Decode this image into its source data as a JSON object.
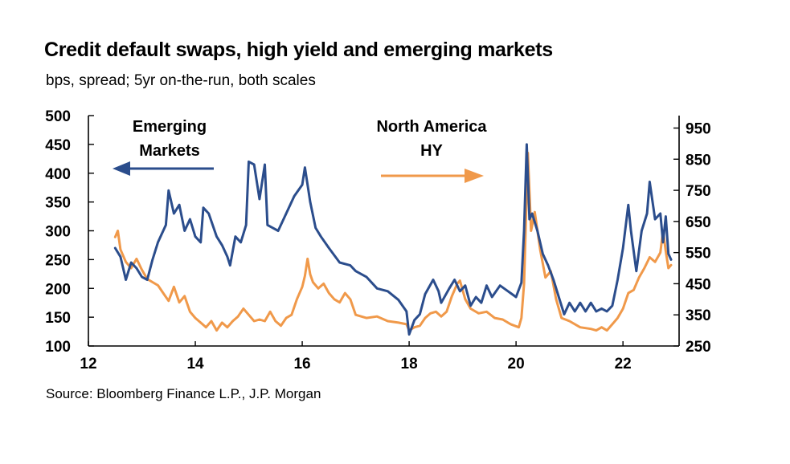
{
  "chart_data": {
    "type": "line",
    "title": "Credit default swaps, high yield and emerging markets",
    "subtitle": "bps, spread; 5yr on-the-run, both scales",
    "source": "Source: Bloomberg Finance L.P., J.P. Morgan",
    "xlim": [
      12,
      23.05
    ],
    "ylim_left": [
      100,
      500
    ],
    "ylim_right": [
      250,
      990
    ],
    "x_ticks": [
      "12",
      "14",
      "16",
      "18",
      "20",
      "22"
    ],
    "y_ticks_left": [
      "500",
      "450",
      "400",
      "350",
      "300",
      "250",
      "200",
      "150",
      "100"
    ],
    "y_ticks_right": [
      "950",
      "850",
      "750",
      "650",
      "550",
      "450",
      "350",
      "250"
    ],
    "annotations": {
      "em_line1": "Emerging",
      "em_line2": "Markets",
      "hy_line1": "North America",
      "hy_line2": "HY"
    },
    "series": [
      {
        "name": "Emerging Markets",
        "axis": "left",
        "color": "#2B4D8C",
        "points": [
          [
            12.5,
            270
          ],
          [
            12.6,
            255
          ],
          [
            12.7,
            215
          ],
          [
            12.8,
            245
          ],
          [
            12.9,
            235
          ],
          [
            13.0,
            220
          ],
          [
            13.1,
            215
          ],
          [
            13.2,
            250
          ],
          [
            13.3,
            280
          ],
          [
            13.45,
            310
          ],
          [
            13.5,
            370
          ],
          [
            13.6,
            330
          ],
          [
            13.7,
            345
          ],
          [
            13.8,
            300
          ],
          [
            13.9,
            320
          ],
          [
            14.0,
            290
          ],
          [
            14.1,
            280
          ],
          [
            14.15,
            340
          ],
          [
            14.25,
            330
          ],
          [
            14.4,
            290
          ],
          [
            14.5,
            275
          ],
          [
            14.6,
            255
          ],
          [
            14.65,
            240
          ],
          [
            14.75,
            290
          ],
          [
            14.85,
            280
          ],
          [
            14.95,
            310
          ],
          [
            15.0,
            420
          ],
          [
            15.1,
            415
          ],
          [
            15.2,
            355
          ],
          [
            15.3,
            415
          ],
          [
            15.35,
            310
          ],
          [
            15.45,
            305
          ],
          [
            15.55,
            300
          ],
          [
            15.7,
            330
          ],
          [
            15.85,
            360
          ],
          [
            16.0,
            380
          ],
          [
            16.05,
            410
          ],
          [
            16.15,
            350
          ],
          [
            16.25,
            305
          ],
          [
            16.35,
            290
          ],
          [
            16.5,
            270
          ],
          [
            16.7,
            245
          ],
          [
            16.9,
            240
          ],
          [
            17.0,
            230
          ],
          [
            17.2,
            220
          ],
          [
            17.4,
            200
          ],
          [
            17.6,
            195
          ],
          [
            17.8,
            180
          ],
          [
            17.95,
            160
          ],
          [
            18.0,
            120
          ],
          [
            18.1,
            145
          ],
          [
            18.2,
            155
          ],
          [
            18.3,
            190
          ],
          [
            18.45,
            215
          ],
          [
            18.55,
            195
          ],
          [
            18.6,
            175
          ],
          [
            18.75,
            200
          ],
          [
            18.85,
            215
          ],
          [
            18.95,
            195
          ],
          [
            19.05,
            205
          ],
          [
            19.15,
            170
          ],
          [
            19.25,
            185
          ],
          [
            19.35,
            175
          ],
          [
            19.45,
            205
          ],
          [
            19.55,
            185
          ],
          [
            19.7,
            205
          ],
          [
            19.85,
            195
          ],
          [
            20.0,
            185
          ],
          [
            20.1,
            210
          ],
          [
            20.15,
            300
          ],
          [
            20.2,
            450
          ],
          [
            20.25,
            320
          ],
          [
            20.3,
            330
          ],
          [
            20.4,
            300
          ],
          [
            20.5,
            260
          ],
          [
            20.6,
            240
          ],
          [
            20.7,
            215
          ],
          [
            20.8,
            185
          ],
          [
            20.9,
            155
          ],
          [
            21.0,
            175
          ],
          [
            21.1,
            160
          ],
          [
            21.2,
            175
          ],
          [
            21.3,
            160
          ],
          [
            21.4,
            175
          ],
          [
            21.5,
            160
          ],
          [
            21.6,
            165
          ],
          [
            21.7,
            160
          ],
          [
            21.8,
            170
          ],
          [
            21.9,
            215
          ],
          [
            22.0,
            270
          ],
          [
            22.1,
            345
          ],
          [
            22.15,
            300
          ],
          [
            22.25,
            230
          ],
          [
            22.35,
            300
          ],
          [
            22.45,
            330
          ],
          [
            22.5,
            385
          ],
          [
            22.6,
            320
          ],
          [
            22.7,
            330
          ],
          [
            22.75,
            280
          ],
          [
            22.8,
            325
          ],
          [
            22.85,
            260
          ],
          [
            22.9,
            250
          ]
        ]
      },
      {
        "name": "North America HY",
        "axis": "right",
        "color": "#F0994A",
        "points": [
          [
            12.5,
            600
          ],
          [
            12.55,
            620
          ],
          [
            12.6,
            560
          ],
          [
            12.7,
            520
          ],
          [
            12.8,
            500
          ],
          [
            12.9,
            530
          ],
          [
            13.0,
            495
          ],
          [
            13.1,
            465
          ],
          [
            13.2,
            455
          ],
          [
            13.3,
            445
          ],
          [
            13.4,
            420
          ],
          [
            13.5,
            395
          ],
          [
            13.6,
            440
          ],
          [
            13.7,
            390
          ],
          [
            13.8,
            410
          ],
          [
            13.9,
            360
          ],
          [
            14.0,
            340
          ],
          [
            14.1,
            325
          ],
          [
            14.2,
            310
          ],
          [
            14.3,
            330
          ],
          [
            14.4,
            300
          ],
          [
            14.5,
            325
          ],
          [
            14.6,
            310
          ],
          [
            14.7,
            330
          ],
          [
            14.8,
            345
          ],
          [
            14.9,
            370
          ],
          [
            15.0,
            350
          ],
          [
            15.1,
            330
          ],
          [
            15.2,
            335
          ],
          [
            15.3,
            330
          ],
          [
            15.4,
            360
          ],
          [
            15.5,
            330
          ],
          [
            15.6,
            315
          ],
          [
            15.7,
            340
          ],
          [
            15.8,
            350
          ],
          [
            15.9,
            400
          ],
          [
            16.0,
            440
          ],
          [
            16.05,
            475
          ],
          [
            16.1,
            530
          ],
          [
            16.15,
            480
          ],
          [
            16.2,
            455
          ],
          [
            16.3,
            435
          ],
          [
            16.4,
            450
          ],
          [
            16.5,
            420
          ],
          [
            16.6,
            400
          ],
          [
            16.7,
            390
          ],
          [
            16.8,
            420
          ],
          [
            16.9,
            400
          ],
          [
            17.0,
            350
          ],
          [
            17.2,
            340
          ],
          [
            17.4,
            345
          ],
          [
            17.6,
            330
          ],
          [
            17.8,
            325
          ],
          [
            17.95,
            320
          ],
          [
            18.0,
            300
          ],
          [
            18.1,
            310
          ],
          [
            18.2,
            315
          ],
          [
            18.3,
            340
          ],
          [
            18.4,
            355
          ],
          [
            18.5,
            360
          ],
          [
            18.6,
            345
          ],
          [
            18.7,
            360
          ],
          [
            18.8,
            410
          ],
          [
            18.9,
            450
          ],
          [
            18.95,
            460
          ],
          [
            19.05,
            400
          ],
          [
            19.15,
            370
          ],
          [
            19.3,
            355
          ],
          [
            19.45,
            360
          ],
          [
            19.6,
            340
          ],
          [
            19.75,
            335
          ],
          [
            19.9,
            320
          ],
          [
            20.05,
            310
          ],
          [
            20.1,
            340
          ],
          [
            20.15,
            450
          ],
          [
            20.22,
            870
          ],
          [
            20.28,
            620
          ],
          [
            20.35,
            680
          ],
          [
            20.45,
            560
          ],
          [
            20.55,
            470
          ],
          [
            20.65,
            490
          ],
          [
            20.75,
            400
          ],
          [
            20.85,
            340
          ],
          [
            21.0,
            330
          ],
          [
            21.2,
            310
          ],
          [
            21.4,
            305
          ],
          [
            21.5,
            300
          ],
          [
            21.6,
            310
          ],
          [
            21.7,
            300
          ],
          [
            21.8,
            320
          ],
          [
            21.9,
            340
          ],
          [
            22.0,
            370
          ],
          [
            22.1,
            420
          ],
          [
            22.2,
            430
          ],
          [
            22.3,
            470
          ],
          [
            22.4,
            500
          ],
          [
            22.5,
            535
          ],
          [
            22.6,
            520
          ],
          [
            22.7,
            550
          ],
          [
            22.75,
            620
          ],
          [
            22.8,
            555
          ],
          [
            22.85,
            500
          ],
          [
            22.9,
            510
          ]
        ]
      }
    ]
  }
}
